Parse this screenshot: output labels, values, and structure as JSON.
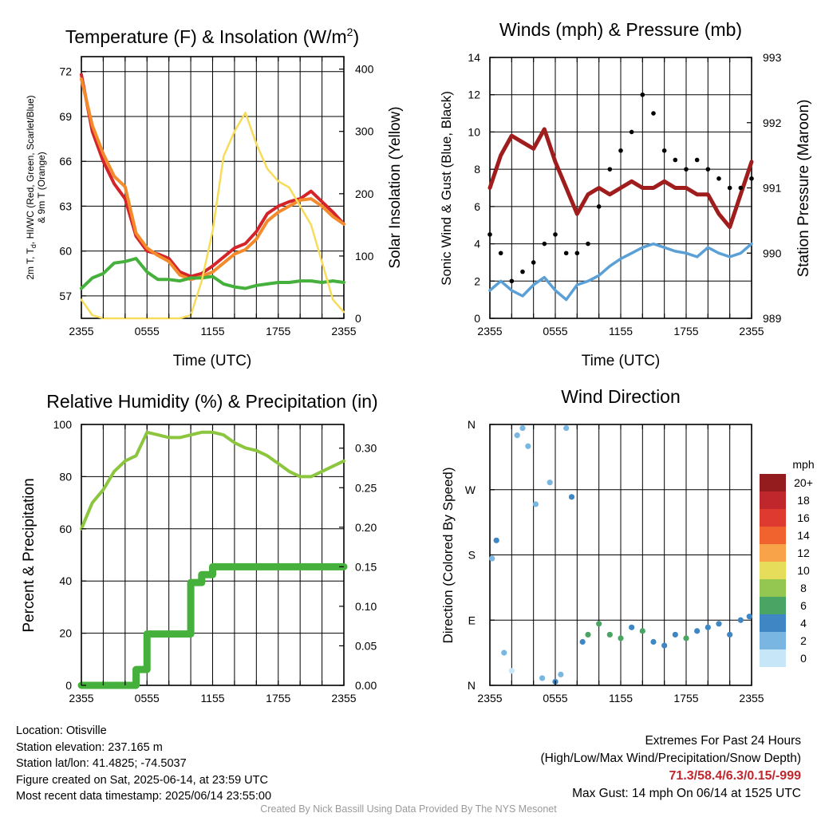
{
  "colors": {
    "temp_red": "#d4242a",
    "temp_orange": "#f38b2c",
    "dew_green": "#45b03b",
    "solar_yellow": "#f7dc5a",
    "wind_blue": "#5aa0d6",
    "pressure_maroon": "#a01d1d",
    "rh_green": "#8cc63f",
    "precip_green": "#45b03b"
  },
  "panels": {
    "temp": {
      "title_main": "Temperature (F) & Insolation (W/m",
      "title_sup": "2",
      "title_end": ")",
      "ylabel_lines": [
        "2m T, T",
        "d",
        ", HI/WC (Red, Green, Scarlet/Blue)",
        "& 9m T (Orange)"
      ],
      "ylabel_right": "Solar Insolation (Yellow)",
      "xlabel": "Time (UTC)",
      "xticks": [
        "2355",
        "0555",
        "1155",
        "1755",
        "2355"
      ],
      "yticks_left": [
        "57",
        "60",
        "63",
        "66",
        "69",
        "72"
      ],
      "yticks_right": [
        "0",
        "100",
        "200",
        "300",
        "400"
      ]
    },
    "winds": {
      "title": "Winds (mph) & Pressure (mb)",
      "ylabel_left": "Sonic Wind & Gust (Blue, Black)",
      "ylabel_right": "Station Pressure (Maroon)",
      "xlabel": "Time (UTC)",
      "xticks": [
        "2355",
        "0555",
        "1155",
        "1755",
        "2355"
      ],
      "yticks_left": [
        "0",
        "2",
        "4",
        "6",
        "8",
        "10",
        "12",
        "14"
      ],
      "yticks_right": [
        "989",
        "990",
        "991",
        "992",
        "993"
      ]
    },
    "rh": {
      "title": "Relative Humidity (%) & Precipitation (in)",
      "ylabel_left": "Percent & Precipitation",
      "xticks": [
        "2355",
        "0555",
        "1155",
        "1755",
        "2355"
      ],
      "yticks_left": [
        "0",
        "20",
        "40",
        "60",
        "80",
        "100"
      ],
      "yticks_right": [
        "0.00",
        "0.05",
        "0.10",
        "0.15",
        "0.20",
        "0.25",
        "0.30"
      ]
    },
    "wdir": {
      "title": "Wind Direction",
      "ylabel_left": "Direction (Colored By Speed)",
      "xticks": [
        "2355",
        "0555",
        "1155",
        "1755",
        "2355"
      ],
      "yticks_left": [
        "N",
        "E",
        "S",
        "W",
        "N"
      ],
      "legend_title": "mph",
      "legend_labels": [
        "20+",
        "18",
        "16",
        "14",
        "12",
        "10",
        "8",
        "6",
        "4",
        "2",
        "0"
      ],
      "legend_colors": [
        "#941b1e",
        "#c0272d",
        "#df3a2f",
        "#f0622e",
        "#f8a34a",
        "#e6de5a",
        "#93c751",
        "#4aa565",
        "#3e87c4",
        "#79b6e1",
        "#c7e6f7"
      ]
    }
  },
  "footer": {
    "location": "Location: Otisville",
    "elevation": "Station elevation: 237.165 m",
    "latlon": "Station lat/lon: 41.4825; -74.5037",
    "created": "Figure created on Sat, 2025-06-14, at 23:59 UTC",
    "recent": "Most recent data timestamp: 2025/06/14 23:55:00",
    "extremes_title": "Extremes For Past 24 Hours",
    "extremes_sub": "(High/Low/Max Wind/Precipitation/Snow Depth)",
    "extremes_values": "71.3/58.4/6.3/0.15/-999",
    "max_gust": "Max Gust: 14 mph On 06/14 at 1525 UTC",
    "credit": "Created By Nick Bassill Using Data Provided By The NYS Mesonet"
  },
  "chart_data": [
    {
      "type": "line",
      "title": "Temperature (F) & Insolation (W/m2)",
      "xlabel": "Time (UTC)",
      "ylabel": "2m T, Td, HI/WC (Red, Green, Scarlet/Blue) & 9m T (Orange)",
      "y2label": "Solar Insolation (Yellow)",
      "x_hours": [
        0,
        1,
        2,
        3,
        4,
        5,
        6,
        7,
        8,
        9,
        10,
        11,
        12,
        13,
        14,
        15,
        16,
        17,
        18,
        19,
        20,
        21,
        22,
        23,
        24
      ],
      "ylim": [
        55.5,
        73
      ],
      "y2lim": [
        0,
        420
      ],
      "series": [
        {
          "name": "2m T",
          "axis": "left",
          "color": "#d4242a",
          "values": [
            71.8,
            68.0,
            66.0,
            64.5,
            63.5,
            61.0,
            60.0,
            59.8,
            59.5,
            58.6,
            58.3,
            58.5,
            59.0,
            59.6,
            60.2,
            60.5,
            61.3,
            62.5,
            63.0,
            63.3,
            63.5,
            64.0,
            63.3,
            62.6,
            61.8
          ]
        },
        {
          "name": "9m T",
          "axis": "left",
          "color": "#f38b2c",
          "values": [
            71.5,
            68.4,
            66.5,
            65.0,
            64.3,
            61.2,
            60.2,
            59.7,
            59.3,
            58.4,
            58.1,
            58.3,
            58.6,
            59.2,
            59.8,
            60.1,
            60.8,
            62.0,
            62.6,
            63.0,
            63.4,
            63.5,
            63.0,
            62.3,
            61.8
          ]
        },
        {
          "name": "Td",
          "axis": "left",
          "color": "#45b03b",
          "values": [
            57.5,
            58.2,
            58.5,
            59.2,
            59.3,
            59.5,
            58.6,
            58.1,
            58.1,
            58.0,
            58.2,
            58.2,
            58.3,
            57.8,
            57.6,
            57.5,
            57.7,
            57.8,
            57.9,
            57.9,
            58.0,
            58.0,
            57.9,
            58.0,
            57.9
          ]
        },
        {
          "name": "Solar",
          "axis": "right",
          "color": "#f7dc5a",
          "values": [
            30,
            5,
            0,
            0,
            0,
            0,
            0,
            0,
            0,
            0,
            5,
            60,
            140,
            260,
            300,
            330,
            280,
            240,
            220,
            210,
            180,
            150,
            90,
            30,
            10
          ]
        }
      ]
    },
    {
      "type": "line",
      "title": "Winds (mph) & Pressure (mb)",
      "xlabel": "Time (UTC)",
      "ylabel": "Sonic Wind & Gust (Blue, Black)",
      "y2label": "Station Pressure (Maroon)",
      "x_hours": [
        0,
        1,
        2,
        3,
        4,
        5,
        6,
        7,
        8,
        9,
        10,
        11,
        12,
        13,
        14,
        15,
        16,
        17,
        18,
        19,
        20,
        21,
        22,
        23,
        24
      ],
      "ylim": [
        0,
        14
      ],
      "y2lim": [
        989,
        993
      ],
      "series": [
        {
          "name": "Wind",
          "axis": "left",
          "color": "#5aa0d6",
          "values": [
            1.5,
            2.0,
            1.5,
            1.2,
            1.8,
            2.2,
            1.5,
            1.0,
            1.8,
            2.0,
            2.3,
            2.8,
            3.2,
            3.5,
            3.8,
            4.0,
            3.8,
            3.6,
            3.5,
            3.3,
            3.8,
            3.5,
            3.3,
            3.5,
            4.0
          ]
        },
        {
          "name": "Gust",
          "axis": "left",
          "color": "#000000",
          "values": [
            4.5,
            3.5,
            2.0,
            2.5,
            3.0,
            4.0,
            4.5,
            3.5,
            3.5,
            4.0,
            6.0,
            8.0,
            9.0,
            10.0,
            12.0,
            11.0,
            9.0,
            8.5,
            8.0,
            8.5,
            8.0,
            7.5,
            7.0,
            7.0,
            7.5
          ]
        },
        {
          "name": "Pressure",
          "axis": "right",
          "color": "#a01d1d",
          "values": [
            991.0,
            991.5,
            991.8,
            991.7,
            991.6,
            991.9,
            991.4,
            991.0,
            990.6,
            990.9,
            991.0,
            990.9,
            991.0,
            991.1,
            991.0,
            991.0,
            991.1,
            991.0,
            991.0,
            990.9,
            990.9,
            990.6,
            990.4,
            990.9,
            991.4
          ]
        }
      ]
    },
    {
      "type": "line",
      "title": "Relative Humidity (%) & Precipitation (in)",
      "ylabel": "Percent & Precipitation",
      "x_hours": [
        0,
        1,
        2,
        3,
        4,
        5,
        6,
        7,
        8,
        9,
        10,
        11,
        12,
        13,
        14,
        15,
        16,
        17,
        18,
        19,
        20,
        21,
        22,
        23,
        24
      ],
      "ylim": [
        0,
        100
      ],
      "y2lim": [
        0,
        0.33
      ],
      "series": [
        {
          "name": "RH",
          "axis": "left",
          "color": "#8cc63f",
          "values": [
            60,
            70,
            75,
            82,
            86,
            88,
            97,
            96,
            95,
            95,
            96,
            97,
            97,
            96,
            93,
            91,
            90,
            88,
            85,
            82,
            80,
            80,
            82,
            84,
            86
          ]
        },
        {
          "name": "Precip",
          "axis": "right",
          "color": "#45b03b",
          "values": [
            0,
            0,
            0,
            0,
            0,
            0.02,
            0.065,
            0.065,
            0.065,
            0.065,
            0.13,
            0.14,
            0.15,
            0.15,
            0.15,
            0.15,
            0.15,
            0.15,
            0.15,
            0.15,
            0.15,
            0.15,
            0.15,
            0.15,
            0.15
          ]
        }
      ]
    },
    {
      "type": "scatter",
      "title": "Wind Direction",
      "ylabel": "Direction (Colored By Speed)",
      "x_hours": [
        0.2,
        0.6,
        1.3,
        2.0,
        2.5,
        3.0,
        3.5,
        4.2,
        4.8,
        5.5,
        6.0,
        6.5,
        7.0,
        7.5,
        8.5,
        9.0,
        10.0,
        11.0,
        12.0,
        13.0,
        14.0,
        15.0,
        16.0,
        17.0,
        18.0,
        19.0,
        20.0,
        21.0,
        22.0,
        23.0,
        23.8
      ],
      "direction_deg": [
        175,
        200,
        45,
        20,
        345,
        355,
        330,
        250,
        10,
        280,
        5,
        15,
        355,
        260,
        60,
        70,
        85,
        70,
        65,
        80,
        75,
        60,
        55,
        70,
        65,
        75,
        80,
        85,
        70,
        90,
        95
      ],
      "speed_mph": [
        2,
        3,
        1,
        0,
        1,
        1,
        2,
        2,
        2,
        1,
        3,
        2,
        1,
        3,
        4,
        5,
        5,
        5,
        6,
        4,
        5,
        4,
        4,
        4,
        5,
        4,
        4,
        4,
        3,
        3,
        4
      ],
      "ylim_labels": [
        "N",
        "E",
        "S",
        "W",
        "N"
      ]
    }
  ]
}
